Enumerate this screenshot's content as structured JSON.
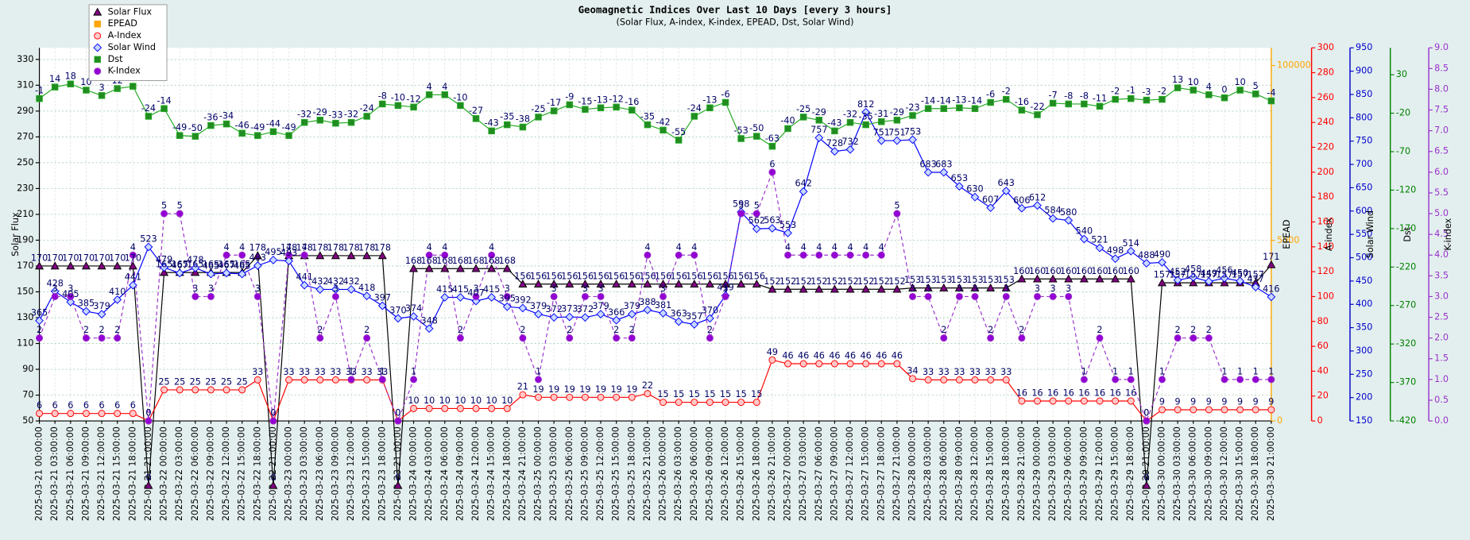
{
  "chart_data": {
    "type": "line",
    "title": "Geomagnetic Indices Over Last 10 Days [every 3 hours]",
    "subtitle": "(Solar Flux, A-index, K-index, EPEAD, Dst, Solar Wind)",
    "categories": [
      "2025-03-21 00:00:00",
      "2025-03-21 03:00:00",
      "2025-03-21 06:00:00",
      "2025-03-21 09:00:00",
      "2025-03-21 12:00:00",
      "2025-03-21 15:00:00",
      "2025-03-21 18:00:00",
      "2025-03-21 21:00:00",
      "2025-03-22 00:00:00",
      "2025-03-22 03:00:00",
      "2025-03-22 06:00:00",
      "2025-03-22 09:00:00",
      "2025-03-22 12:00:00",
      "2025-03-22 15:00:00",
      "2025-03-22 18:00:00",
      "2025-03-22 21:00:00",
      "2025-03-23 00:00:00",
      "2025-03-23 03:00:00",
      "2025-03-23 06:00:00",
      "2025-03-23 09:00:00",
      "2025-03-23 12:00:00",
      "2025-03-23 15:00:00",
      "2025-03-23 18:00:00",
      "2025-03-23 21:00:00",
      "2025-03-24 00:00:00",
      "2025-03-24 03:00:00",
      "2025-03-24 06:00:00",
      "2025-03-24 09:00:00",
      "2025-03-24 12:00:00",
      "2025-03-24 15:00:00",
      "2025-03-24 18:00:00",
      "2025-03-24 21:00:00",
      "2025-03-25 00:00:00",
      "2025-03-25 03:00:00",
      "2025-03-25 06:00:00",
      "2025-03-25 09:00:00",
      "2025-03-25 12:00:00",
      "2025-03-25 15:00:00",
      "2025-03-25 18:00:00",
      "2025-03-25 21:00:00",
      "2025-03-26 00:00:00",
      "2025-03-26 03:00:00",
      "2025-03-26 06:00:00",
      "2025-03-26 09:00:00",
      "2025-03-26 12:00:00",
      "2025-03-26 15:00:00",
      "2025-03-26 18:00:00",
      "2025-03-26 21:00:00",
      "2025-03-27 00:00:00",
      "2025-03-27 03:00:00",
      "2025-03-27 06:00:00",
      "2025-03-27 09:00:00",
      "2025-03-27 12:00:00",
      "2025-03-27 15:00:00",
      "2025-03-27 18:00:00",
      "2025-03-27 21:00:00",
      "2025-03-28 00:00:00",
      "2025-03-28 03:00:00",
      "2025-03-28 06:00:00",
      "2025-03-28 09:00:00",
      "2025-03-28 12:00:00",
      "2025-03-28 15:00:00",
      "2025-03-28 18:00:00",
      "2025-03-28 21:00:00",
      "2025-03-29 00:00:00",
      "2025-03-29 03:00:00",
      "2025-03-29 06:00:00",
      "2025-03-29 09:00:00",
      "2025-03-29 12:00:00",
      "2025-03-29 15:00:00",
      "2025-03-29 18:00:00",
      "2025-03-29 21:00:00",
      "2025-03-30 00:00:00",
      "2025-03-30 03:00:00",
      "2025-03-30 06:00:00",
      "2025-03-30 09:00:00",
      "2025-03-30 12:00:00",
      "2025-03-30 15:00:00",
      "2025-03-30 18:00:00",
      "2025-03-30 21:00:00"
    ],
    "ylabel": "Solar Flux",
    "ylim": [
      50,
      339
    ],
    "yticks": [
      50,
      70,
      90,
      110,
      130,
      150,
      170,
      190,
      210,
      230,
      250,
      270,
      290,
      310,
      330
    ],
    "grid": true,
    "legend": "upper left",
    "axes": [
      {
        "id": "epead",
        "label": "EPEAD",
        "color": "#ffa500",
        "scale": "symlog",
        "lim": [
          0,
          135000
        ],
        "ticks": [
          0,
          5000,
          100000
        ]
      },
      {
        "id": "a",
        "label": "A-index",
        "color": "#ff0000",
        "scale": "linear",
        "lim": [
          0,
          300
        ],
        "ticks": [
          0,
          20,
          40,
          60,
          80,
          100,
          120,
          140,
          160,
          180,
          200,
          220,
          240,
          260,
          280,
          300
        ]
      },
      {
        "id": "sw",
        "label": "Solar Wind",
        "color": "#0000cc",
        "scale": "linear",
        "lim": [
          150,
          950
        ],
        "ticks": [
          150,
          200,
          250,
          300,
          350,
          400,
          450,
          500,
          550,
          600,
          650,
          700,
          750,
          800,
          850,
          900,
          950
        ]
      },
      {
        "id": "dst",
        "label": "Dst",
        "color": "#008000",
        "scale": "linear",
        "lim": [
          -420,
          65
        ],
        "ticks": [
          -420,
          -370,
          -320,
          -270,
          -220,
          -170,
          -120,
          -70,
          -20,
          30
        ]
      },
      {
        "id": "k",
        "label": "K-index",
        "color": "#9932cc",
        "scale": "linear",
        "lim": [
          0,
          9
        ],
        "ticks": [
          {
            "value": 0,
            "label": "0.0"
          },
          0.5,
          {
            "value": 1,
            "label": "1.0"
          },
          1.5,
          {
            "value": 2,
            "label": "2.0"
          },
          2.5,
          {
            "value": 3,
            "label": "3.0"
          },
          3.5,
          {
            "value": 4,
            "label": "4.0"
          },
          4.5,
          {
            "value": 5,
            "label": "5.0"
          },
          5.5,
          {
            "value": 6,
            "label": "6.0"
          },
          6.5,
          {
            "value": 7,
            "label": "7.0"
          },
          7.5,
          {
            "value": 8,
            "label": "8.0"
          },
          8.5,
          {
            "value": 9,
            "label": "9.0"
          }
        ]
      }
    ],
    "series": [
      {
        "name": "Solar Flux",
        "axis": "y",
        "color": "#000000",
        "marker": "triangle",
        "marker_color": "#800080",
        "line_style": "solid",
        "values": [
          170,
          170,
          170,
          170,
          170,
          170,
          170,
          0,
          165,
          165,
          165,
          165,
          165,
          165,
          178,
          0,
          178,
          178,
          178,
          178,
          178,
          178,
          178,
          0,
          168,
          168,
          168,
          168,
          168,
          168,
          168,
          156,
          156,
          156,
          156,
          156,
          156,
          156,
          156,
          156,
          156,
          156,
          156,
          156,
          156,
          156,
          156,
          152,
          152,
          152,
          152,
          152,
          152,
          152,
          152,
          152,
          153,
          153,
          153,
          153,
          153,
          153,
          153,
          160,
          160,
          160,
          160,
          160,
          160,
          160,
          160,
          0,
          157,
          157,
          157,
          157,
          157,
          157,
          157,
          171
        ]
      },
      {
        "name": "EPEAD",
        "axis": "epead",
        "color": "#ffa500",
        "marker": "square",
        "marker_color": "#ffa500",
        "line_style": "solid",
        "values": [
          null,
          null,
          null,
          null,
          null,
          null,
          null,
          null,
          null,
          null,
          null,
          null,
          null,
          null,
          null,
          null,
          null,
          null,
          null,
          null,
          null,
          null,
          null,
          null,
          null,
          null,
          null,
          null,
          null,
          null,
          null,
          null,
          null,
          null,
          null,
          null,
          null,
          null,
          null,
          null,
          null,
          null,
          null,
          null,
          null,
          null,
          null,
          null,
          null,
          null,
          null,
          null,
          null,
          null,
          null,
          null,
          null,
          null,
          null,
          null,
          null,
          null,
          null,
          null,
          null,
          null,
          null,
          null,
          null,
          null,
          null,
          null,
          null,
          null,
          null,
          null,
          null,
          null,
          null,
          null
        ]
      },
      {
        "name": "A-Index",
        "axis": "a",
        "color": "#ff0000",
        "marker": "circle",
        "marker_color": "#ffc8c8",
        "line_style": "solid",
        "values": [
          6,
          6,
          6,
          6,
          6,
          6,
          6,
          0,
          25,
          25,
          25,
          25,
          25,
          25,
          33,
          0,
          33,
          33,
          33,
          33,
          33,
          33,
          33,
          0,
          10,
          10,
          10,
          10,
          10,
          10,
          10,
          21,
          19,
          19,
          19,
          19,
          19,
          19,
          19,
          22,
          15,
          15,
          15,
          15,
          15,
          15,
          15,
          49,
          46,
          46,
          46,
          46,
          46,
          46,
          46,
          46,
          34,
          33,
          33,
          33,
          33,
          33,
          33,
          16,
          16,
          16,
          16,
          16,
          16,
          16,
          16,
          0,
          9,
          9,
          9,
          9,
          9,
          9,
          9,
          9
        ]
      },
      {
        "name": "Solar Wind",
        "axis": "sw",
        "color": "#0000ff",
        "marker": "diamond",
        "marker_color": "#c8d8ff",
        "line_style": "solid",
        "values": [
          365,
          428,
          405,
          385,
          379,
          410,
          441,
          523,
          479,
          467,
          478,
          465,
          467,
          465,
          483,
          495,
          493,
          441,
          432,
          432,
          432,
          418,
          397,
          370,
          374,
          348,
          415,
          415,
          407,
          415,
          395,
          392,
          379,
          372,
          373,
          372,
          379,
          366,
          379,
          388,
          381,
          363,
          357,
          370,
          419,
          598,
          562,
          563,
          553,
          642,
          757,
          728,
          732,
          812,
          751,
          751,
          753,
          683,
          683,
          653,
          630,
          607,
          643,
          606,
          612,
          584,
          580,
          540,
          521,
          498,
          514,
          488,
          490,
          452,
          458,
          449,
          456,
          450,
          437,
          416
        ]
      },
      {
        "name": "Dst",
        "axis": "dst",
        "color": "#22aa22",
        "marker": "square",
        "marker_color": "#228b22",
        "line_style": "solid",
        "values": [
          -1,
          14,
          18,
          10,
          3,
          12,
          15,
          -24,
          -14,
          -49,
          -50,
          -36,
          -34,
          -46,
          -49,
          -44,
          -49,
          -32,
          -29,
          -33,
          -32,
          -24,
          -8,
          -10,
          -12,
          4,
          4,
          -10,
          -27,
          -43,
          -35,
          -38,
          -25,
          -17,
          -9,
          -15,
          -13,
          -12,
          -16,
          -35,
          -42,
          -55,
          -24,
          -13,
          -6,
          -53,
          -50,
          -63,
          -40,
          -25,
          -29,
          -43,
          -32,
          -35,
          -31,
          -29,
          -23,
          -14,
          -14,
          -13,
          -14,
          -6,
          -2,
          -16,
          -22,
          -7,
          -8,
          -8,
          -11,
          -2,
          -1,
          -3,
          -2,
          13,
          10,
          4,
          0,
          10,
          5,
          -4
        ]
      },
      {
        "name": "K-Index",
        "axis": "k",
        "color": "#9932cc",
        "marker": "circle",
        "marker_color": "#9400d3",
        "line_style": "dashed",
        "values": [
          2,
          3,
          3,
          2,
          2,
          2,
          4,
          0,
          5,
          5,
          3,
          3,
          4,
          4,
          3,
          0,
          4,
          4,
          2,
          3,
          1,
          2,
          1,
          0,
          1,
          4,
          4,
          2,
          3,
          4,
          3,
          2,
          1,
          3,
          2,
          3,
          3,
          2,
          2,
          4,
          3,
          4,
          4,
          2,
          3,
          5,
          5,
          6,
          4,
          4,
          4,
          4,
          4,
          4,
          4,
          5,
          3,
          3,
          2,
          3,
          3,
          2,
          3,
          2,
          3,
          3,
          3,
          1,
          2,
          1,
          1,
          0,
          1,
          2,
          2,
          2,
          1,
          1,
          1,
          1
        ]
      }
    ]
  }
}
